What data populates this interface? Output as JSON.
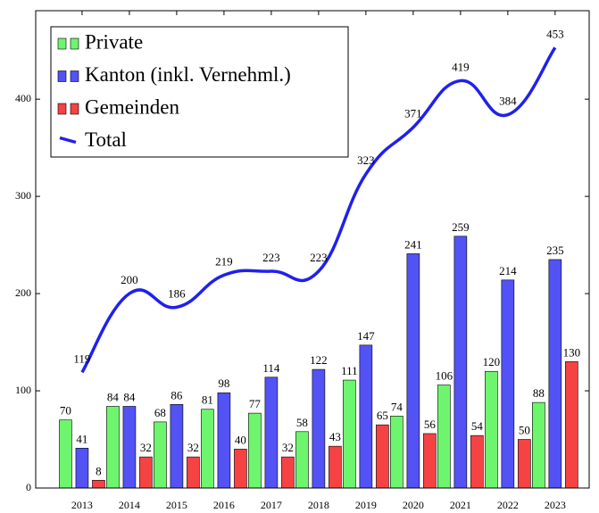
{
  "chart_data": {
    "type": "bar_line",
    "x": [
      2013,
      2014,
      2015,
      2016,
      2017,
      2018,
      2019,
      2020,
      2021,
      2022,
      2023
    ],
    "series": [
      {
        "name": "Private",
        "color": "#6ef56e",
        "type": "bar",
        "values": [
          70,
          84,
          68,
          81,
          77,
          58,
          111,
          74,
          106,
          120,
          88
        ]
      },
      {
        "name": "Kanton (inkl. Vernehml.)",
        "color": "#5252f5",
        "type": "bar",
        "values": [
          41,
          84,
          86,
          98,
          114,
          122,
          147,
          241,
          259,
          214,
          235
        ]
      },
      {
        "name": "Gemeinden",
        "color": "#f54343",
        "type": "bar",
        "values": [
          8,
          32,
          32,
          40,
          32,
          43,
          65,
          56,
          54,
          50,
          130
        ]
      },
      {
        "name": "Total",
        "color": "#2020ee",
        "type": "line",
        "values": [
          119,
          200,
          186,
          219,
          223,
          223,
          323,
          371,
          419,
          384,
          453
        ]
      }
    ],
    "xlim": [
      2012.02,
      2023.72
    ],
    "xticks": [
      2013,
      2014,
      2015,
      2016,
      2017,
      2018,
      2019,
      2020,
      2021,
      2022,
      2023
    ],
    "ylim": [
      0,
      491
    ],
    "yticks": [
      0,
      100,
      200,
      300,
      400
    ],
    "legend": "upper left"
  }
}
